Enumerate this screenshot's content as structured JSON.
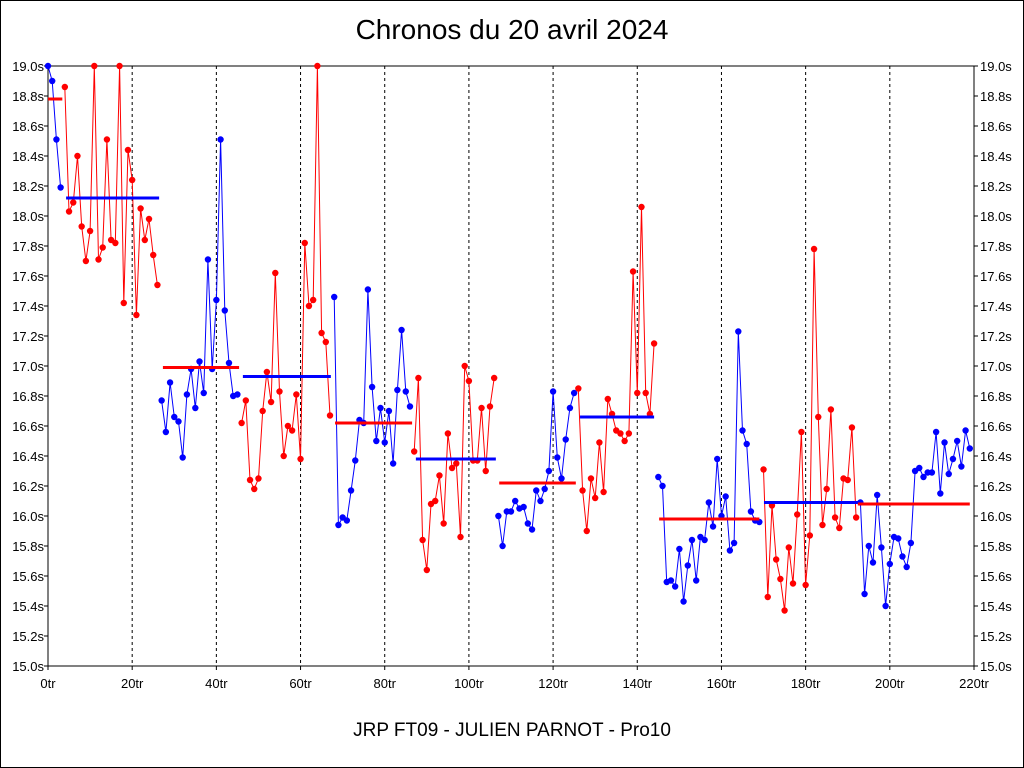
{
  "chart_data": {
    "type": "line",
    "title": "Chronos du 20 avril 2024",
    "footer": "JRP FT09 - JULIEN PARNOT - Pro10",
    "xlim": [
      0,
      220
    ],
    "ylim": [
      15.0,
      19.0
    ],
    "x_ticks": [
      0,
      20,
      40,
      60,
      80,
      100,
      120,
      140,
      160,
      180,
      200,
      220
    ],
    "x_tick_labels": [
      "0tr",
      "20tr",
      "40tr",
      "60tr",
      "80tr",
      "100tr",
      "120tr",
      "140tr",
      "160tr",
      "180tr",
      "200tr",
      "220tr"
    ],
    "y_ticks": [
      15.0,
      15.2,
      15.4,
      15.6,
      15.8,
      16.0,
      16.2,
      16.4,
      16.6,
      16.8,
      17.0,
      17.2,
      17.4,
      17.6,
      17.8,
      18.0,
      18.2,
      18.4,
      18.6,
      18.8,
      19.0
    ],
    "y_tick_labels": [
      "15.0s",
      "15.2s",
      "15.4s",
      "15.6s",
      "15.8s",
      "16.0s",
      "16.2s",
      "16.4s",
      "16.6s",
      "16.8s",
      "17.0s",
      "17.2s",
      "17.4s",
      "17.6s",
      "17.8s",
      "18.0s",
      "18.2s",
      "18.4s",
      "18.6s",
      "18.8s",
      "19.0s"
    ],
    "grid": "vertical-dashed",
    "series": [
      {
        "name": "relais-1",
        "color": "#0000ff",
        "start_lap": 0,
        "values": [
          19.0,
          18.9,
          18.51,
          18.19
        ]
      },
      {
        "name": "relais-2",
        "color": "#ff0000",
        "start_lap": 4,
        "values": [
          18.86,
          18.03,
          18.09,
          18.4,
          17.93,
          17.7,
          17.9,
          19.0,
          17.71,
          17.79,
          18.51,
          17.84,
          17.82,
          19.0,
          17.42,
          18.44,
          18.24,
          17.34,
          18.05,
          17.84,
          17.98,
          17.74,
          17.54
        ]
      },
      {
        "name": "relais-3",
        "color": "#0000ff",
        "start_lap": 27,
        "values": [
          16.77,
          16.56,
          16.89,
          16.66,
          16.63,
          16.39,
          16.81,
          16.98,
          16.72,
          17.03,
          16.82,
          17.71,
          16.98,
          17.44,
          18.51,
          17.37,
          17.02,
          16.8,
          16.81
        ]
      },
      {
        "name": "relais-4",
        "color": "#ff0000",
        "start_lap": 46,
        "values": [
          16.62,
          16.77,
          16.24,
          16.18,
          16.25,
          16.7,
          16.96,
          16.76,
          17.62,
          16.83,
          16.4,
          16.6,
          16.57,
          16.81,
          16.38,
          17.82,
          17.4,
          17.44,
          19.0,
          17.22,
          17.16,
          16.67
        ]
      },
      {
        "name": "relais-5",
        "color": "#0000ff",
        "start_lap": 68,
        "values": [
          17.46,
          15.94,
          15.99,
          15.97,
          16.17,
          16.37,
          16.64,
          16.62,
          17.51,
          16.86,
          16.5,
          16.72,
          16.49,
          16.7,
          16.35,
          16.84,
          17.24,
          16.83,
          16.73
        ]
      },
      {
        "name": "relais-6",
        "color": "#ff0000",
        "start_lap": 87,
        "values": [
          16.43,
          16.92,
          15.84,
          15.64,
          16.08,
          16.1,
          16.27,
          15.95,
          16.55,
          16.32,
          16.35,
          15.86,
          17.0,
          16.9,
          16.37,
          16.37,
          16.72,
          16.3,
          16.73,
          16.92
        ]
      },
      {
        "name": "relais-7",
        "color": "#0000ff",
        "start_lap": 107,
        "values": [
          16.0,
          15.8,
          16.03,
          16.03,
          16.1,
          16.05,
          16.06,
          15.95,
          15.91,
          16.17,
          16.1,
          16.18,
          16.3,
          16.83,
          16.39,
          16.25,
          16.51,
          16.72,
          16.82
        ]
      },
      {
        "name": "relais-8",
        "color": "#ff0000",
        "start_lap": 126,
        "values": [
          16.85,
          16.17,
          15.9,
          16.25,
          16.12,
          16.49,
          16.16,
          16.78,
          16.68,
          16.57,
          16.55,
          16.5,
          16.55,
          17.63,
          16.82,
          18.06,
          16.82,
          16.68,
          17.15
        ]
      },
      {
        "name": "relais-9",
        "color": "#0000ff",
        "start_lap": 145,
        "values": [
          16.26,
          16.2,
          15.56,
          15.57,
          15.53,
          15.78,
          15.43,
          15.67,
          15.84,
          15.57,
          15.86,
          15.84,
          16.09,
          15.93,
          16.38,
          16.0,
          16.13,
          15.77,
          15.82,
          17.23,
          16.57,
          16.48,
          16.03,
          15.97,
          15.96
        ]
      },
      {
        "name": "relais-10",
        "color": "#ff0000",
        "start_lap": 170,
        "values": [
          16.31,
          15.46,
          16.07,
          15.71,
          15.58,
          15.37,
          15.79,
          15.55,
          16.01,
          16.56,
          15.54,
          15.87,
          17.78,
          16.66,
          15.94,
          16.18,
          16.71,
          15.99,
          15.92,
          16.25,
          16.24,
          16.59,
          15.99
        ]
      },
      {
        "name": "relais-11",
        "color": "#0000ff",
        "start_lap": 193,
        "values": [
          16.09,
          15.48,
          15.8,
          15.69,
          16.14,
          15.79,
          15.4,
          15.68,
          15.86,
          15.85,
          15.73,
          15.66,
          15.82,
          16.3,
          16.32,
          16.26,
          16.29,
          16.29,
          16.56,
          16.15,
          16.49,
          16.28,
          16.38,
          16.5,
          16.33,
          16.57,
          16.45
        ]
      }
    ],
    "averages": [
      {
        "color": "#ff0000",
        "from": 0,
        "to": 3.4,
        "value": 18.78
      },
      {
        "color": "#0000ff",
        "from": 4.3,
        "to": 26.4,
        "value": 18.12
      },
      {
        "color": "#ff0000",
        "from": 27.3,
        "to": 45.4,
        "value": 16.99
      },
      {
        "color": "#0000ff",
        "from": 46.3,
        "to": 67.2,
        "value": 16.93
      },
      {
        "color": "#ff0000",
        "from": 68.2,
        "to": 86.5,
        "value": 16.62
      },
      {
        "color": "#0000ff",
        "from": 87.4,
        "to": 106.4,
        "value": 16.38
      },
      {
        "color": "#ff0000",
        "from": 107.2,
        "to": 125.4,
        "value": 16.22
      },
      {
        "color": "#0000ff",
        "from": 126.4,
        "to": 144.0,
        "value": 16.66
      },
      {
        "color": "#ff0000",
        "from": 145.2,
        "to": 169.0,
        "value": 15.98
      },
      {
        "color": "#0000ff",
        "from": 170.1,
        "to": 192.4,
        "value": 16.09
      },
      {
        "color": "#ff0000",
        "from": 192.4,
        "to": 219.0,
        "value": 16.08
      }
    ]
  }
}
